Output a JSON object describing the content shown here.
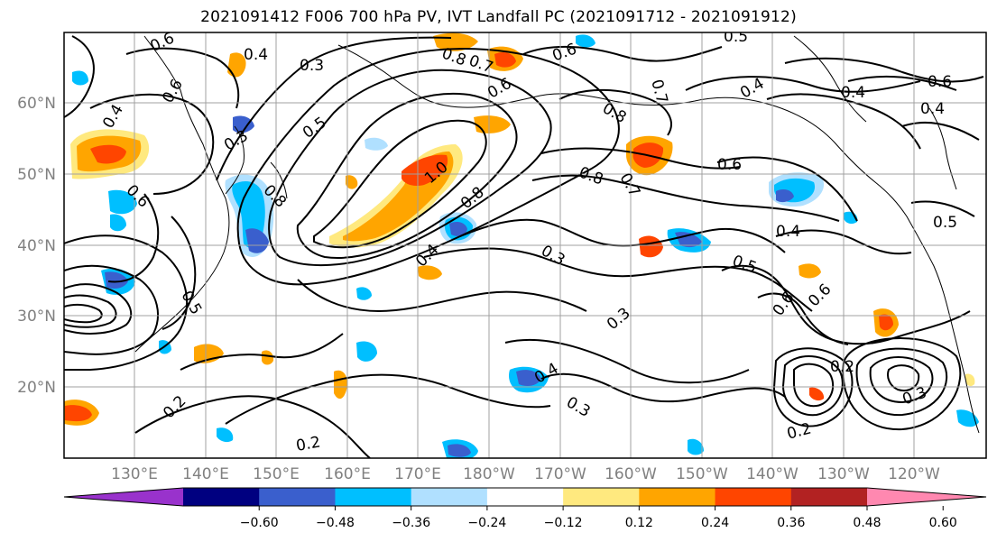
{
  "title": "2021091412 F006 700 hPa PV, IVT Landfall PC (2021091712 - 2021091912)",
  "map": {
    "lat_labels": [
      "20°N",
      "30°N",
      "40°N",
      "50°N",
      "60°N"
    ],
    "lon_labels": [
      "130°E",
      "140°E",
      "150°E",
      "160°E",
      "170°E",
      "180°W",
      "170°W",
      "160°W",
      "150°W",
      "140°W",
      "130°W",
      "120°W"
    ],
    "contour_labels": [
      "0.6",
      "0.4",
      "0.3",
      "0.8",
      "0.7",
      "0.6",
      "0.5",
      "0.8",
      "0.7",
      "0.6",
      "0.4",
      "0.5",
      "0.3",
      "0.4",
      "0.6",
      "1.0",
      "0.8",
      "0.8",
      "0.6",
      "0.4",
      "0.6",
      "0.8",
      "0.7",
      "0.5",
      "0.4",
      "0.3",
      "0.6",
      "0.4",
      "0.5",
      "0.6",
      "0.6",
      "0.3",
      "0.2",
      "0.4",
      "0.3",
      "0.2",
      "0.2",
      "0.3",
      "0.2",
      "0.4",
      "0.5"
    ]
  },
  "colorbar": {
    "tick_labels": [
      "−0.60",
      "−0.48",
      "−0.36",
      "−0.24",
      "−0.12",
      "0.12",
      "0.24",
      "0.36",
      "0.48",
      "0.60"
    ],
    "colors": [
      "#9932cc",
      "#000080",
      "#3a5fcd",
      "#00bfff",
      "#b0e0ff",
      "#ffffff",
      "#ffe97f",
      "#ffa500",
      "#ff4500",
      "#b22222",
      "#ff88b0"
    ]
  },
  "colors": {
    "gridline": "#a0a0a0",
    "contour": "#000000",
    "positive_shading": [
      "#ffe97f",
      "#ffa500",
      "#ff4500"
    ],
    "negative_shading": [
      "#b0e0ff",
      "#00bfff",
      "#3a5fcd"
    ]
  }
}
